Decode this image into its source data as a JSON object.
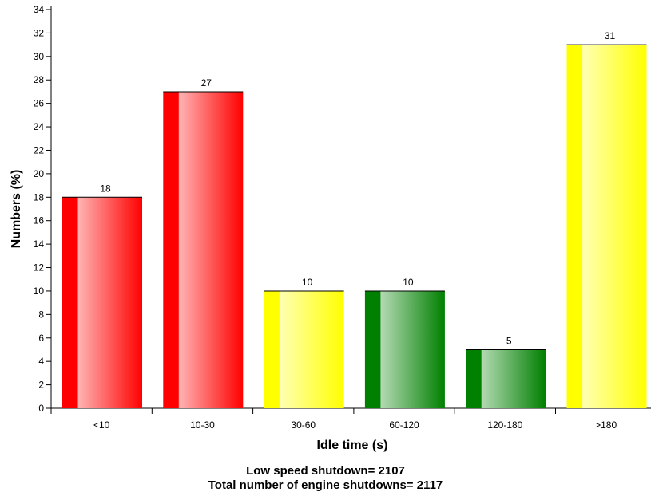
{
  "chart_data": {
    "type": "bar",
    "categories": [
      "<10",
      "10-30",
      "30-60",
      "60-120",
      "120-180",
      ">180"
    ],
    "values": [
      18,
      27,
      10,
      10,
      5,
      31
    ],
    "colors": [
      "#ff0000",
      "#ff0000",
      "#ffff00",
      "#008000",
      "#008000",
      "#ffff00"
    ],
    "xlabel": "Idle time (s)",
    "ylabel": "Numbers (%)",
    "ylim": [
      0,
      34
    ],
    "yticks": [
      0,
      2,
      4,
      6,
      8,
      10,
      12,
      14,
      16,
      18,
      20,
      22,
      24,
      26,
      28,
      30,
      32,
      34
    ],
    "grid": false,
    "data_labels": true
  },
  "notes": {
    "line1": "Low speed shutdown= 2107",
    "line2": "Total number of engine shutdowns= 2117"
  }
}
